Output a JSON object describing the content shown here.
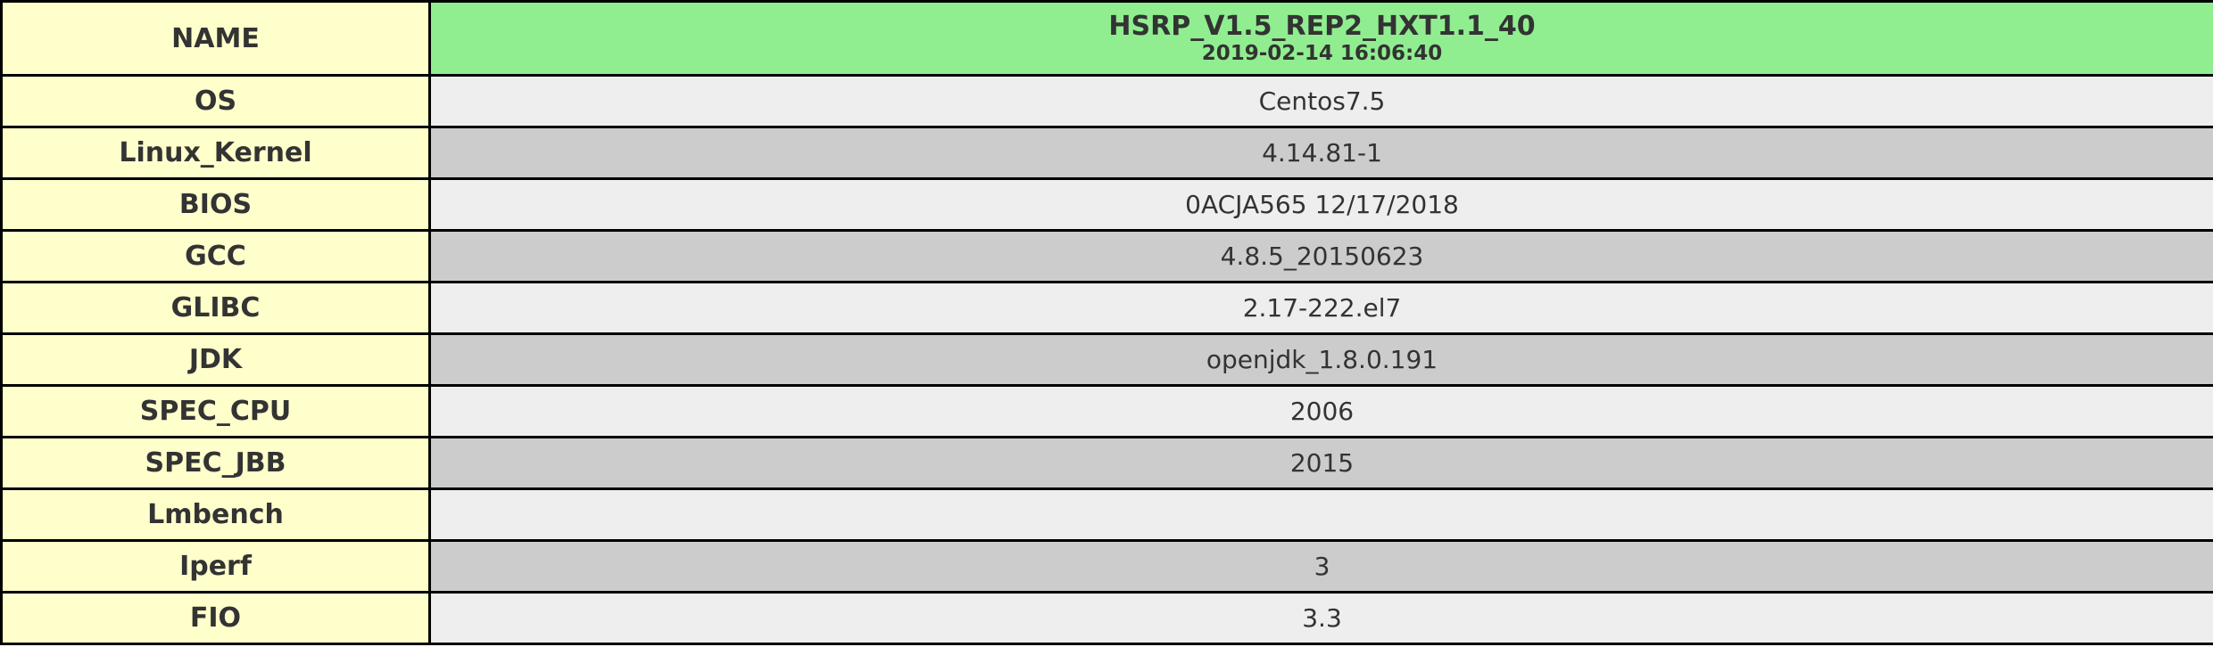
{
  "header": {
    "label": "NAME",
    "title": "HSRP_V1.5_REP2_HXT1.1_40",
    "timestamp": "2019-02-14 16:06:40"
  },
  "rows": [
    {
      "label": "OS",
      "value": "Centos7.5"
    },
    {
      "label": "Linux_Kernel",
      "value": "4.14.81-1"
    },
    {
      "label": "BIOS",
      "value": "0ACJA565 12/17/2018"
    },
    {
      "label": "GCC",
      "value": "4.8.5_20150623"
    },
    {
      "label": "GLIBC",
      "value": "2.17-222.el7"
    },
    {
      "label": "JDK",
      "value": "openjdk_1.8.0.191"
    },
    {
      "label": "SPEC_CPU",
      "value": "2006"
    },
    {
      "label": "SPEC_JBB",
      "value": "2015"
    },
    {
      "label": "Lmbench",
      "value": ""
    },
    {
      "label": "Iperf",
      "value": "3"
    },
    {
      "label": "FIO",
      "value": "3.3"
    }
  ],
  "colors": {
    "label_bg": "#ffffcc",
    "header_bg": "#90ee90",
    "row_light": "#eeeeee",
    "row_dark": "#cccccc",
    "border": "#000000",
    "text": "#333333"
  }
}
